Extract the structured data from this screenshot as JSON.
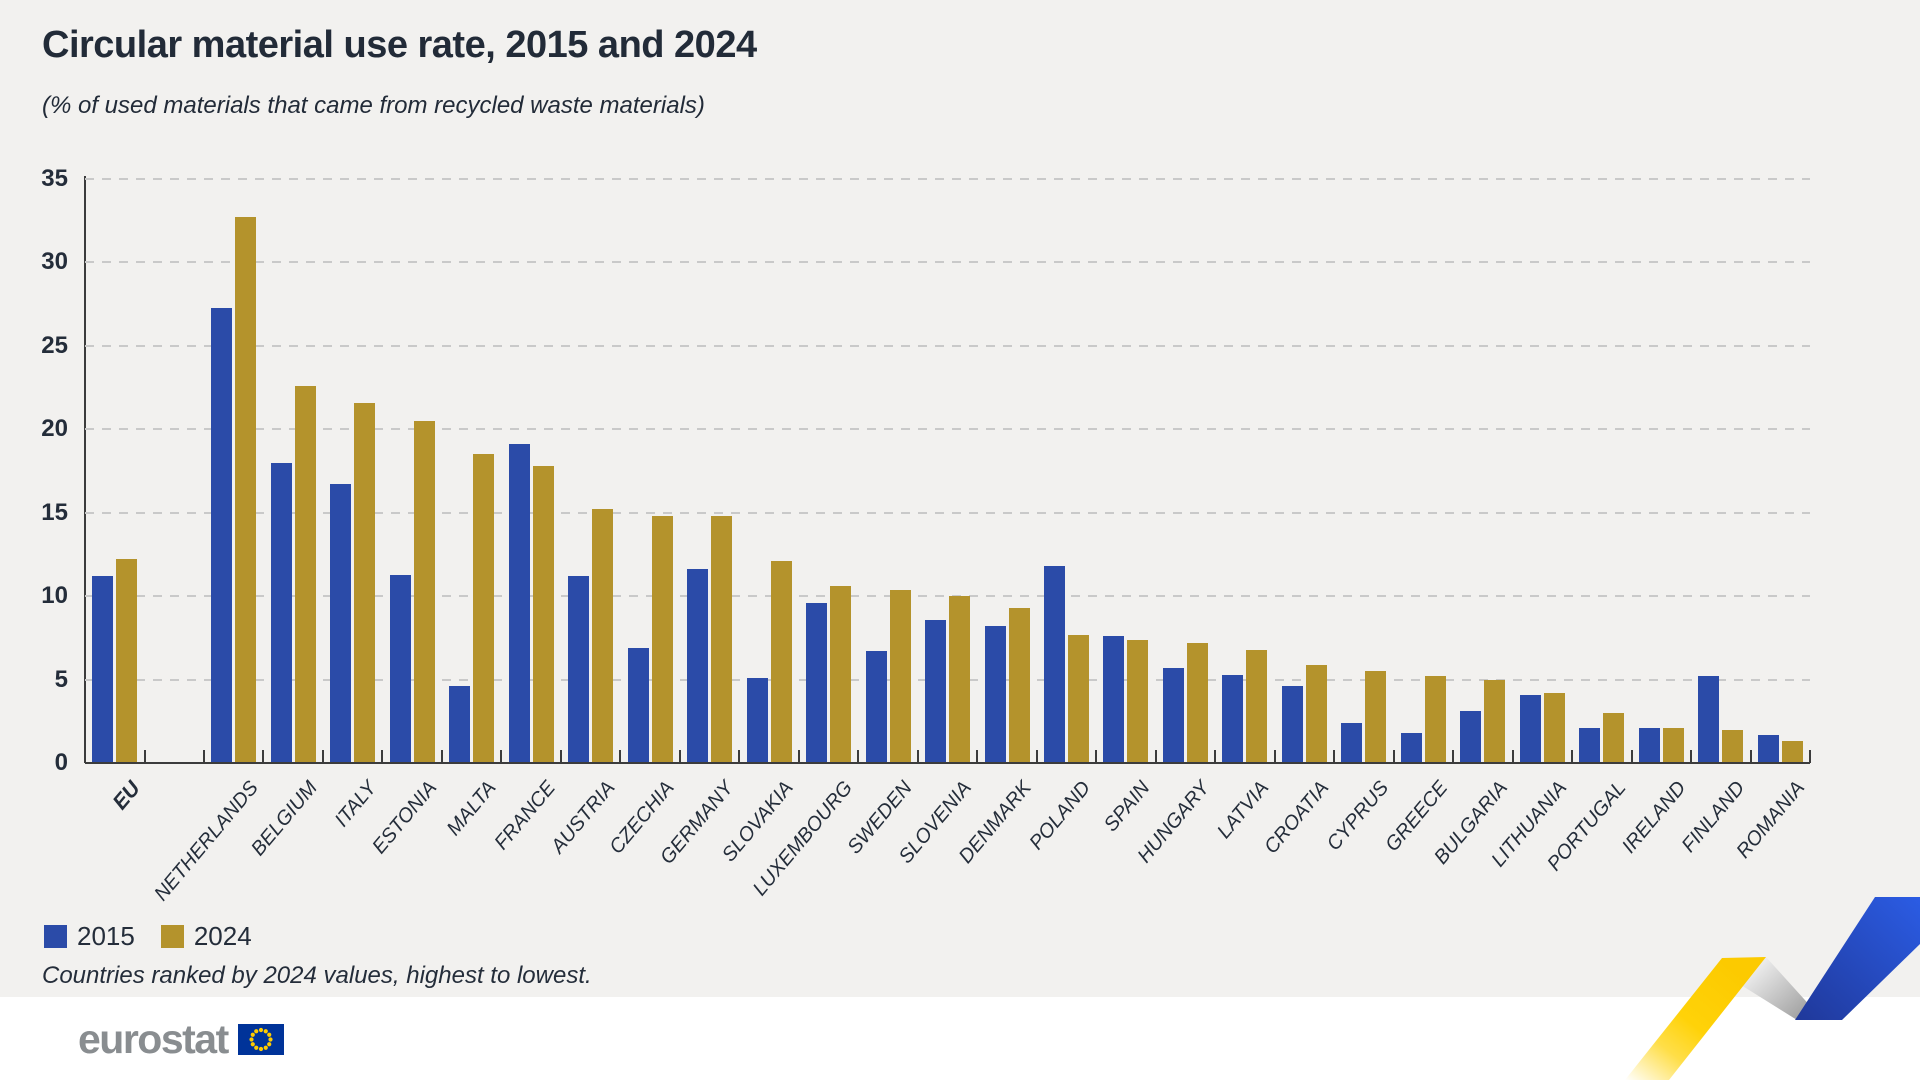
{
  "title": "Circular material use rate, 2015 and 2024",
  "subtitle": "(% of used materials that came from recycled waste materials)",
  "footnote": "Countries ranked by 2024 values, highest to lowest.",
  "logo_text": "eurostat",
  "legend": [
    {
      "label": "2015",
      "color": "#2b4ba8"
    },
    {
      "label": "2024",
      "color": "#b4932c"
    }
  ],
  "chart_data": {
    "type": "bar",
    "title": "Circular material use rate, 2015 and 2024",
    "subtitle": "(% of used materials that came from recycled waste materials)",
    "ylabel": "%",
    "ylim": [
      0,
      35
    ],
    "yticks": [
      0,
      5,
      10,
      15,
      20,
      25,
      30,
      35
    ],
    "grid": "dashed-horizontal",
    "legend_position": "bottom-left",
    "note": "Countries ranked by 2024 values, highest to lowest.",
    "categories": [
      "EU",
      "NETHERLANDS",
      "BELGIUM",
      "ITALY",
      "ESTONIA",
      "MALTA",
      "FRANCE",
      "AUSTRIA",
      "CZECHIA",
      "GERMANY",
      "SLOVAKIA",
      "LUXEMBOURG",
      "SWEDEN",
      "SLOVENIA",
      "DENMARK",
      "POLAND",
      "SPAIN",
      "HUNGARY",
      "LATVIA",
      "CROATIA",
      "CYPRUS",
      "GREECE",
      "BULGARIA",
      "LITHUANIA",
      "PORTUGAL",
      "IRELAND",
      "FINLAND",
      "ROMANIA"
    ],
    "series": [
      {
        "name": "2015",
        "color": "#2b4ba8",
        "values": [
          11.2,
          27.3,
          18.0,
          16.7,
          11.3,
          4.6,
          19.1,
          11.2,
          6.9,
          11.6,
          5.1,
          9.6,
          6.7,
          8.6,
          8.2,
          11.8,
          7.6,
          5.7,
          5.3,
          4.6,
          2.4,
          1.8,
          3.1,
          4.1,
          2.1,
          2.1,
          5.2,
          1.7
        ]
      },
      {
        "name": "2024",
        "color": "#b4932c",
        "values": [
          12.2,
          32.7,
          22.6,
          21.6,
          20.5,
          18.5,
          17.8,
          15.2,
          14.8,
          14.8,
          12.1,
          10.6,
          10.4,
          10.0,
          9.3,
          7.7,
          7.4,
          7.2,
          6.8,
          5.9,
          5.5,
          5.2,
          5.0,
          4.2,
          3.0,
          2.1,
          2.0,
          1.3
        ]
      }
    ]
  },
  "colors": {
    "background_panel": "#f2f1ef",
    "bar_2015": "#2b4ba8",
    "bar_2024": "#b4932c",
    "text": "#242d3a",
    "axis": "#3c3c3c",
    "gridline": "#c9c9c9",
    "logo_gray": "#898d90",
    "flag_blue": "#003399",
    "flag_star": "#ffcc00",
    "ribbon_yellow": "#ffd208",
    "ribbon_blue": "#2b5ce4"
  }
}
